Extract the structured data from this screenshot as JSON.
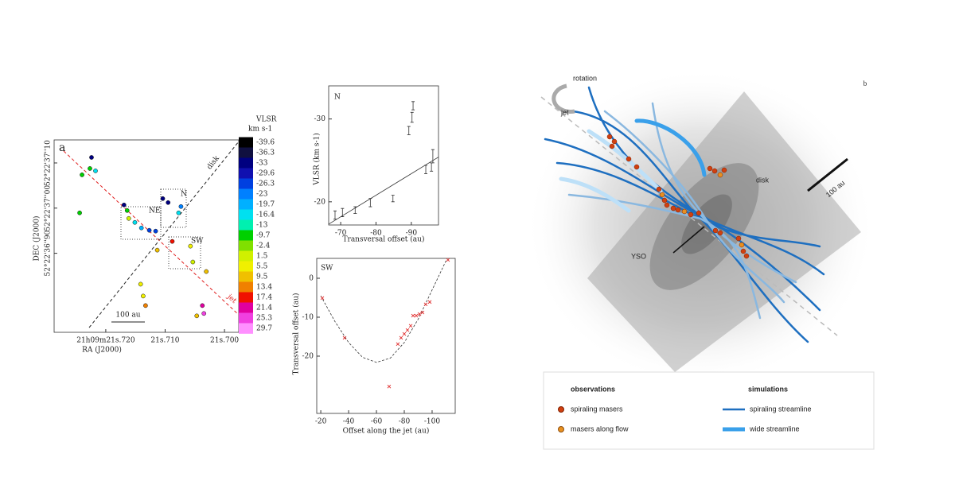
{
  "chart_data": [
    {
      "type": "scatter",
      "panel": "a",
      "xlabel": "RA (J2000)",
      "ylabel": "DEC (J2000)",
      "xlim": [
        21.7287,
        21.6976
      ],
      "xticks": [
        {
          "value": 21.72,
          "label": "21h09m21s.720"
        },
        {
          "value": 21.71,
          "label": "21s.710"
        },
        {
          "value": 21.7,
          "label": "21s.700"
        }
      ],
      "ylim": [
        36.725,
        37.151
      ],
      "yticks": [
        {
          "value": 37.1,
          "label": "52°22'37''10"
        },
        {
          "value": 37.0,
          "label": "52°22'37''00"
        },
        {
          "value": 36.9,
          "label": "52°22'36''90"
        }
      ],
      "x": [
        21.7224,
        21.72267,
        21.724,
        21.72173,
        21.7244,
        21.71693,
        21.7164,
        21.71613,
        21.7151,
        21.714,
        21.71267,
        21.7116,
        21.7104,
        21.7095,
        21.70773,
        21.70733,
        21.7088,
        21.70573,
        21.70533,
        21.71133,
        21.71413,
        21.7137,
        21.7133,
        21.70373,
        21.70347,
        21.70467,
        21.70307
      ],
      "values": [
        37.1123,
        37.0877,
        37.0737,
        37.0825,
        36.9895,
        37.007,
        36.9947,
        36.9772,
        36.9684,
        36.9561,
        36.9509,
        36.9491,
        37.0211,
        37.0123,
        36.9895,
        37.0035,
        36.9263,
        36.9158,
        36.8807,
        36.907,
        36.8316,
        36.8053,
        36.7842,
        36.7842,
        36.7667,
        36.7614,
        36.8596
      ],
      "velocity": [
        -33,
        -9.7,
        -9.7,
        -16.4,
        -9.7,
        -33,
        -9.7,
        1.5,
        -16.4,
        -19.7,
        -26.3,
        -26.3,
        -33,
        -33,
        -16.4,
        -23,
        17.4,
        5.5,
        1.5,
        9.5,
        5.5,
        5.5,
        13.4,
        21.4,
        25.3,
        9.5,
        9.5
      ],
      "colorbar": {
        "title": "VLSR",
        "unit": "km s-1",
        "ticks": [
          -39.6,
          -36.3,
          -33,
          -29.6,
          -26.3,
          -23,
          -19.7,
          -16.4,
          -13,
          -9.7,
          -2.4,
          1.5,
          5.5,
          9.5,
          13.4,
          17.4,
          21.4,
          25.3,
          29.7
        ],
        "colors": [
          "#000000",
          "#101040",
          "#000080",
          "#1010b0",
          "#0040e0",
          "#0080ff",
          "#00b0ff",
          "#00e0f0",
          "#00f0b0",
          "#00d000",
          "#80e000",
          "#d0f000",
          "#f0f000",
          "#f0c000",
          "#f08000",
          "#f01000",
          "#e000a0",
          "#f040e0",
          "#ff90ff"
        ]
      },
      "annotations": {
        "disk": "disk",
        "jet": "jet",
        "ne": "NE",
        "n": "N",
        "sw": "SW",
        "scale": "100 au"
      }
    },
    {
      "type": "errorbar",
      "title": "N",
      "xlabel": "Transversal offset (au)",
      "ylabel": "VLSR (km s-1)",
      "xlim": [
        -66.6,
        -97.7
      ],
      "xticks": [
        -70,
        -80,
        -90
      ],
      "ylim": [
        -17.2,
        -34.0
      ],
      "yticks": [
        -30,
        -20
      ],
      "x": [
        -68.4,
        -70.5,
        -74.1,
        -78.4,
        -84.8,
        -89.3,
        -90.2,
        -90.5,
        -94.1,
        -96.1,
        -95.7
      ],
      "values": [
        -18.4,
        -18.7,
        -19.0,
        -19.9,
        -20.4,
        -28.6,
        -30.2,
        -31.6,
        -23.9,
        -25.5,
        -24.2
      ],
      "errors": [
        0.5,
        0.5,
        0.4,
        0.5,
        0.4,
        0.5,
        0.6,
        0.5,
        0.5,
        0.8,
        0.5
      ],
      "color": "#333333",
      "fit": {
        "x": [
          -66.6,
          -97.7
        ],
        "values": [
          -17.3,
          -25.4
        ]
      }
    },
    {
      "type": "scatter",
      "title": "SW",
      "xlabel": "Offset along the jet (au)",
      "ylabel": "Transversal offset (au)",
      "xlim": [
        -17.1,
        -116.6
      ],
      "xticks": [
        -20,
        -40,
        -60,
        -80,
        -100
      ],
      "ylim": [
        -34.7,
        5.1
      ],
      "yticks": [
        0,
        -10,
        -20
      ],
      "x": [
        -21.1,
        -37.1,
        -75.4,
        -77.7,
        -80,
        -82.3,
        -84.6,
        -86.3,
        -88.6,
        -90.9,
        -93.1,
        -95.4,
        -98.3,
        -111.4,
        -69.1
      ],
      "values": [
        -5.1,
        -15.3,
        -16.9,
        -15.3,
        -14.3,
        -13.3,
        -12.2,
        -9.6,
        -9.6,
        -9.2,
        -8.8,
        -6.7,
        -6.1,
        4.7,
        -27.8
      ],
      "color": "#e03030",
      "curve": {
        "x": [
          -20,
          -30,
          -40,
          -50,
          -60,
          -70,
          -80,
          -90,
          -100,
          -110
        ],
        "values": [
          -4.5,
          -11,
          -16.5,
          -20.3,
          -21.6,
          -20.5,
          -16.5,
          -10.5,
          -3,
          4.5
        ]
      }
    }
  ],
  "panel_b": {
    "label": "b",
    "rotation": "rotation",
    "jet": "jet",
    "disk": "disk",
    "scale": "100 au",
    "yso": "YSO",
    "legend": {
      "observations": "observations",
      "spiraling_masers": "spiraling masers",
      "masers_along_flow": "masers along flow",
      "simulations": "simulations",
      "spiraling_streamline": "spiraling streamline",
      "wide_streamline": "wide streamline"
    }
  }
}
